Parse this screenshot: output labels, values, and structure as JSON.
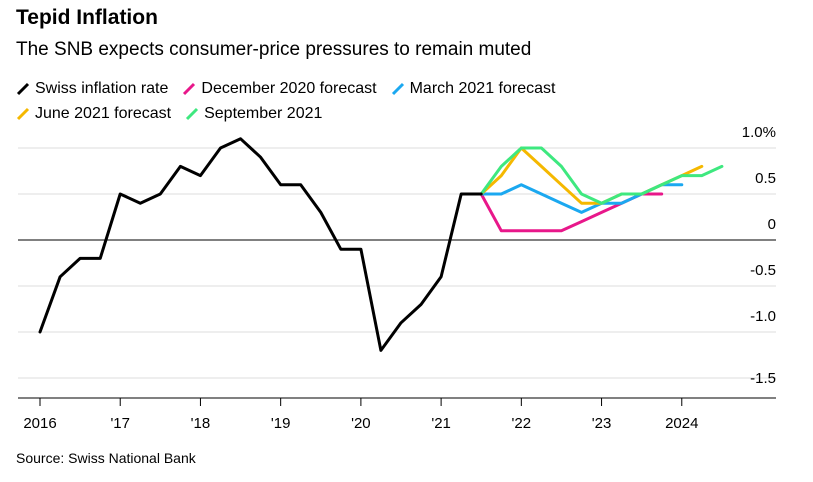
{
  "title": "Tepid Inflation",
  "subtitle": "The SNB expects consumer-price pressures to remain muted",
  "source": "Source: Swiss National Bank",
  "legend": [
    {
      "label": "Swiss inflation rate",
      "color": "#000000"
    },
    {
      "label": "December 2020 forecast",
      "color": "#e8178a"
    },
    {
      "label": "March 2021 forecast",
      "color": "#1ba8f0"
    },
    {
      "label": "June 2021 forecast",
      "color": "#f5b800"
    },
    {
      "label": "September 2021",
      "color": "#3ee87f"
    }
  ],
  "chart_data": {
    "type": "line",
    "title": "Tepid Inflation",
    "xlabel": "",
    "ylabel": "",
    "xlim": [
      2016.0,
      2025.0
    ],
    "ylim": [
      -1.5,
      1.0
    ],
    "x_ticks": [
      {
        "value": 2016,
        "label": "2016"
      },
      {
        "value": 2017,
        "label": "'17"
      },
      {
        "value": 2018,
        "label": "'18"
      },
      {
        "value": 2019,
        "label": "'19"
      },
      {
        "value": 2020,
        "label": "'20"
      },
      {
        "value": 2021,
        "label": "'21"
      },
      {
        "value": 2022,
        "label": "'22"
      },
      {
        "value": 2023,
        "label": "'23"
      },
      {
        "value": 2024,
        "label": "2024"
      }
    ],
    "y_ticks": [
      {
        "value": 1.0,
        "label": "1.0%"
      },
      {
        "value": 0.5,
        "label": "0.5"
      },
      {
        "value": 0,
        "label": "0"
      },
      {
        "value": -0.5,
        "label": "-0.5"
      },
      {
        "value": -1.0,
        "label": "-1.0"
      },
      {
        "value": -1.5,
        "label": "-1.5"
      }
    ],
    "grid": true,
    "series": [
      {
        "name": "Swiss inflation rate",
        "color": "#000000",
        "x": [
          2016.0,
          2016.25,
          2016.5,
          2016.75,
          2017.0,
          2017.25,
          2017.5,
          2017.75,
          2018.0,
          2018.25,
          2018.5,
          2018.75,
          2019.0,
          2019.25,
          2019.5,
          2019.75,
          2020.0,
          2020.25,
          2020.5,
          2020.75,
          2021.0,
          2021.25,
          2021.5
        ],
        "y": [
          -1.0,
          -0.4,
          -0.2,
          -0.2,
          0.5,
          0.4,
          0.5,
          0.8,
          0.7,
          1.0,
          1.1,
          0.9,
          0.6,
          0.6,
          0.3,
          -0.1,
          -0.1,
          -1.2,
          -0.9,
          -0.7,
          -0.4,
          0.5,
          0.5
        ]
      },
      {
        "name": "December 2020 forecast",
        "color": "#e8178a",
        "x": [
          2021.5,
          2021.75,
          2022.0,
          2022.25,
          2022.5,
          2022.75,
          2023.0,
          2023.25,
          2023.5,
          2023.75
        ],
        "y": [
          0.5,
          0.1,
          0.1,
          0.1,
          0.1,
          0.2,
          0.3,
          0.4,
          0.5,
          0.5
        ]
      },
      {
        "name": "March 2021 forecast",
        "color": "#1ba8f0",
        "x": [
          2021.5,
          2021.75,
          2022.0,
          2022.25,
          2022.5,
          2022.75,
          2023.0,
          2023.25,
          2023.5,
          2023.75,
          2024.0
        ],
        "y": [
          0.5,
          0.5,
          0.6,
          0.5,
          0.4,
          0.3,
          0.4,
          0.4,
          0.5,
          0.6,
          0.6
        ]
      },
      {
        "name": "June 2021 forecast",
        "color": "#f5b800",
        "x": [
          2021.5,
          2021.75,
          2022.0,
          2022.25,
          2022.5,
          2022.75,
          2023.0,
          2023.25,
          2023.5,
          2023.75,
          2024.0,
          2024.25
        ],
        "y": [
          0.5,
          0.7,
          1.0,
          0.8,
          0.6,
          0.4,
          0.4,
          0.5,
          0.5,
          0.6,
          0.7,
          0.8
        ]
      },
      {
        "name": "September 2021",
        "color": "#3ee87f",
        "x": [
          2021.5,
          2021.75,
          2022.0,
          2022.25,
          2022.5,
          2022.75,
          2023.0,
          2023.25,
          2023.5,
          2023.75,
          2024.0,
          2024.25,
          2024.5
        ],
        "y": [
          0.5,
          0.8,
          1.0,
          1.0,
          0.8,
          0.5,
          0.4,
          0.5,
          0.5,
          0.6,
          0.7,
          0.7,
          0.8
        ]
      }
    ]
  }
}
